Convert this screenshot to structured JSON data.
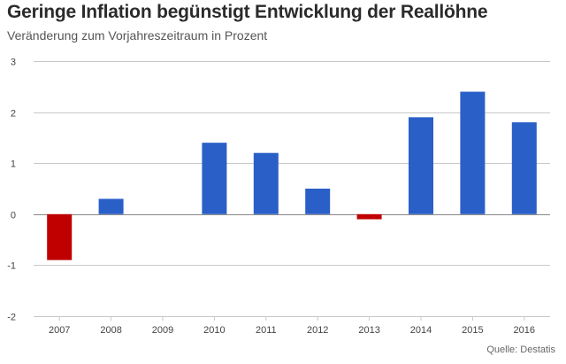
{
  "title": "Geringe Inflation begünstigt Entwicklung der Reallöhne",
  "subtitle": "Veränderung zum Vorjahreszeitraum in Prozent",
  "source": "Quelle: Destatis",
  "colors": {
    "positive": "#2a5fc8",
    "negative": "#c00000",
    "grid": "#c8c8c8",
    "baseline": "#888888"
  },
  "chart_data": {
    "type": "bar",
    "categories": [
      "2007",
      "2008",
      "2009",
      "2010",
      "2011",
      "2012",
      "2013",
      "2014",
      "2015",
      "2016"
    ],
    "values": [
      -0.9,
      0.3,
      0,
      1.4,
      1.2,
      0.5,
      -0.1,
      1.9,
      2.4,
      1.8
    ],
    "ylim": [
      -2,
      3
    ],
    "yticks": [
      -2,
      -1,
      0,
      1,
      2,
      3
    ],
    "grid": true,
    "legend": "none"
  }
}
